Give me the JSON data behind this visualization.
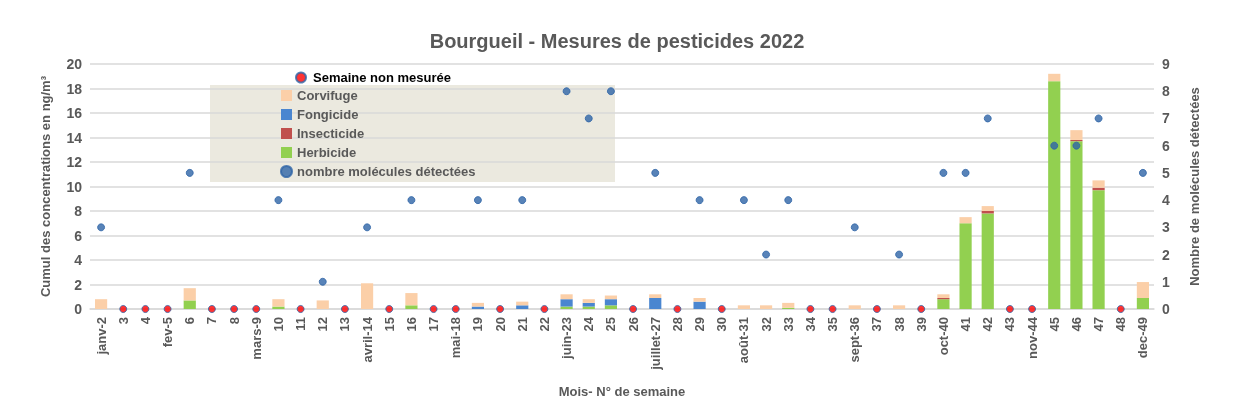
{
  "chart_data": {
    "type": "bar",
    "title": "Bourgueil - Mesures de pesticides 2022",
    "xlabel": "Mois- N° de semaine",
    "ylabel": "Cumul des concentrations en ng/m³",
    "y2label": "Nombre de molécules détectées",
    "categories": [
      "janv-2",
      "3",
      "4",
      "fev-5",
      "6",
      "7",
      "8",
      "mars-9",
      "10",
      "11",
      "12",
      "13",
      "avril-14",
      "15",
      "16",
      "17",
      "mai-18",
      "19",
      "20",
      "21",
      "22",
      "juin-23",
      "24",
      "25",
      "26",
      "juillet-27",
      "28",
      "29",
      "30",
      "août-31",
      "32",
      "33",
      "34",
      "35",
      "sept-36",
      "37",
      "38",
      "39",
      "oct-40",
      "41",
      "42",
      "43",
      "nov-44",
      "45",
      "46",
      "47",
      "48",
      "dec-49"
    ],
    "stacked": true,
    "series": [
      {
        "name": "Herbicide",
        "color": "#92d050",
        "values": [
          0,
          null,
          null,
          null,
          0.7,
          null,
          null,
          null,
          0.2,
          null,
          0,
          null,
          0,
          null,
          0.3,
          null,
          null,
          0,
          null,
          0,
          null,
          0.2,
          0.2,
          0.3,
          null,
          0,
          null,
          0,
          null,
          0,
          0,
          0.1,
          null,
          null,
          0,
          null,
          0,
          null,
          0.8,
          7.0,
          7.8,
          null,
          null,
          18.6,
          13.7,
          9.7,
          null,
          0.9
        ]
      },
      {
        "name": "Insecticide",
        "color": "#c0504d",
        "values": [
          0,
          null,
          null,
          null,
          0,
          null,
          null,
          null,
          0,
          null,
          0,
          null,
          0,
          null,
          0,
          null,
          null,
          0,
          null,
          0,
          null,
          0,
          0,
          0,
          null,
          0,
          null,
          0,
          null,
          0,
          0,
          0,
          null,
          null,
          0,
          null,
          0,
          null,
          0.1,
          0,
          0.2,
          null,
          null,
          0,
          0.1,
          0.2,
          null,
          0
        ]
      },
      {
        "name": "Fongicide",
        "color": "#4a86d0",
        "values": [
          0,
          null,
          null,
          null,
          0,
          null,
          null,
          null,
          0,
          null,
          0,
          null,
          0,
          null,
          0,
          null,
          null,
          0.2,
          null,
          0.3,
          null,
          0.6,
          0.3,
          0.5,
          null,
          0.9,
          null,
          0.6,
          null,
          0,
          0,
          0,
          null,
          null,
          0,
          null,
          0,
          null,
          0,
          0,
          0,
          null,
          null,
          0,
          0,
          0,
          null,
          0
        ]
      },
      {
        "name": "Corvifuge",
        "color": "#fbcfa8",
        "values": [
          0.8,
          null,
          null,
          null,
          1.0,
          null,
          null,
          null,
          0.6,
          null,
          0.7,
          null,
          2.1,
          null,
          1.0,
          null,
          null,
          0.3,
          null,
          0.3,
          null,
          0.4,
          0.3,
          0.3,
          null,
          0.3,
          null,
          0.3,
          null,
          0.3,
          0.3,
          0.4,
          null,
          null,
          0.3,
          null,
          0.3,
          null,
          0.3,
          0.5,
          0.4,
          null,
          null,
          0.6,
          0.8,
          0.6,
          null,
          1.3
        ]
      },
      {
        "name": "nombre molécules détectées",
        "type": "scatter",
        "axis": "y2",
        "marker": "circle",
        "color": "#2e64a6",
        "values": [
          3,
          null,
          null,
          null,
          5,
          null,
          null,
          null,
          4,
          null,
          1,
          null,
          3,
          null,
          4,
          null,
          null,
          4,
          null,
          4,
          null,
          8,
          7,
          8,
          null,
          5,
          null,
          4,
          null,
          4,
          2,
          4,
          null,
          null,
          3,
          null,
          2,
          null,
          5,
          5,
          7,
          null,
          null,
          6,
          6,
          7,
          null,
          5
        ]
      },
      {
        "name": "Semaine non mesurée",
        "type": "scatter",
        "axis": "y2",
        "marker": "circle",
        "color": "#ff0000",
        "values": [
          null,
          0,
          0,
          0,
          null,
          0,
          0,
          0,
          null,
          0,
          null,
          0,
          null,
          0,
          null,
          0,
          0,
          null,
          0,
          null,
          0,
          null,
          null,
          null,
          0,
          null,
          0,
          null,
          0,
          null,
          null,
          null,
          0,
          0,
          null,
          0,
          null,
          0,
          null,
          null,
          null,
          0,
          0,
          null,
          null,
          null,
          0,
          null
        ]
      }
    ],
    "ylim": [
      0,
      20
    ],
    "yticks": [
      0,
      2,
      4,
      6,
      8,
      10,
      12,
      14,
      16,
      18,
      20
    ],
    "y2lim": [
      0,
      9
    ],
    "y2ticks": [
      0,
      1,
      2,
      3,
      4,
      5,
      6,
      7,
      8,
      9
    ],
    "grid": "y",
    "legend": "top left"
  }
}
